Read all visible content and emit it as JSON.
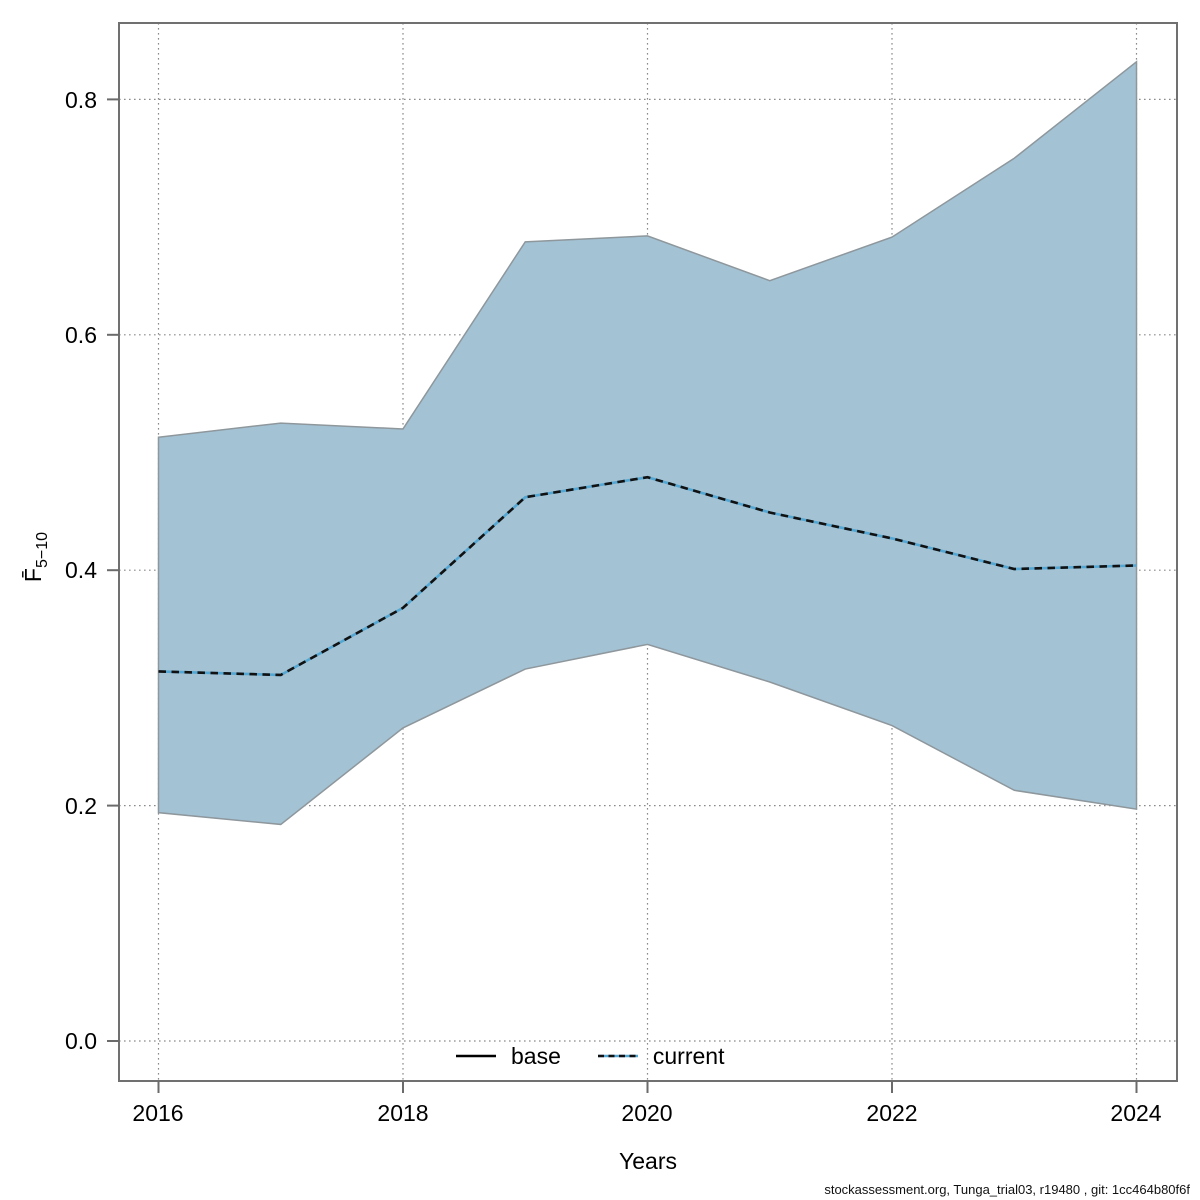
{
  "chart_data": {
    "type": "line",
    "title": "",
    "xlabel": "Years",
    "ylabel": "F̄₅₋₁₀",
    "ylabel_main": "F̄",
    "ylabel_sub": "5−10",
    "x": [
      2016,
      2017,
      2018,
      2019,
      2020,
      2021,
      2022,
      2023,
      2024
    ],
    "series": [
      {
        "name": "current",
        "style": "dashed",
        "values": [
          0.314,
          0.311,
          0.368,
          0.462,
          0.479,
          0.449,
          0.427,
          0.401,
          0.404
        ]
      }
    ],
    "band": {
      "name": "confidence-band",
      "upper": [
        0.513,
        0.525,
        0.52,
        0.679,
        0.684,
        0.646,
        0.683,
        0.75,
        0.832
      ],
      "lower": [
        0.194,
        0.184,
        0.266,
        0.316,
        0.337,
        0.305,
        0.268,
        0.213,
        0.197
      ]
    },
    "axes": {
      "xlim": [
        2015.7,
        2024.3
      ],
      "ylim": [
        -0.03,
        0.865
      ],
      "grid": true,
      "x_ticks": [
        {
          "value": 2016,
          "label": "2016"
        },
        {
          "value": 2018,
          "label": "2018"
        },
        {
          "value": 2020,
          "label": "2020"
        },
        {
          "value": 2022,
          "label": "2022"
        },
        {
          "value": 2024,
          "label": "2024"
        }
      ],
      "y_ticks": [
        {
          "value": 0.0,
          "label": "0.0"
        },
        {
          "value": 0.2,
          "label": "0.2"
        },
        {
          "value": 0.4,
          "label": "0.4"
        },
        {
          "value": 0.6,
          "label": "0.6"
        },
        {
          "value": 0.8,
          "label": "0.8"
        }
      ]
    },
    "legend": {
      "position": "bottom-center",
      "items": [
        {
          "label": "base",
          "line": "solid"
        },
        {
          "label": "current",
          "line": "dashed"
        }
      ]
    },
    "colors": {
      "band_fill": "#a3c3d5",
      "band_edge": "#8e979c",
      "current_underlay": "#55a7d3",
      "current_dash": "#111111",
      "base_line": "#000000",
      "grid": "#8a8a8a",
      "frame": "#707070"
    }
  },
  "footer": {
    "credit": "stockassessment.org, Tunga_trial03, r19480 , git: 1cc464b80f6f"
  }
}
